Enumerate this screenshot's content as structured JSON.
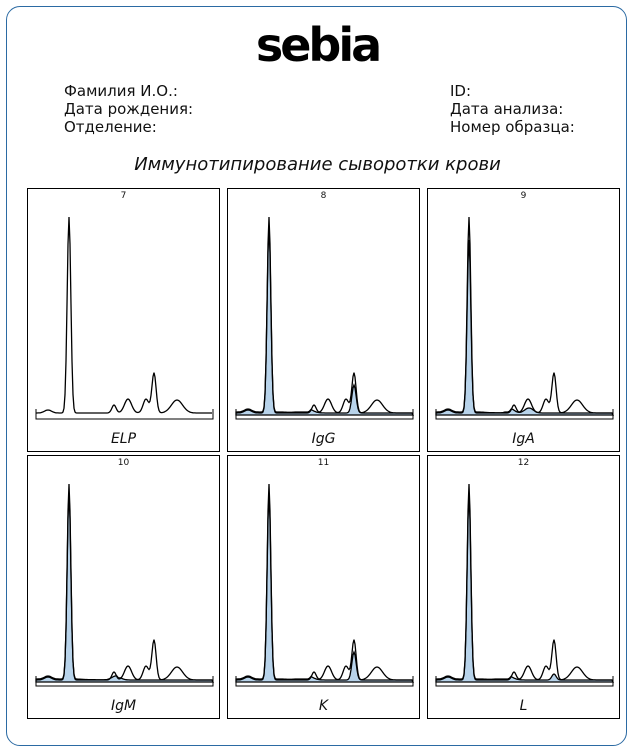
{
  "logo": "sebia",
  "patient": {
    "name_label": "Фамилия И.О.:",
    "birth_label": "Дата рождения:",
    "dept_label": "Отделение:",
    "id_label": "ID:",
    "analysis_date_label": "Дата анализа:",
    "sample_label": "Номер образца:"
  },
  "title": "Иммунотипирование сыворотки крови",
  "colors": {
    "frame": "#2b6aa3",
    "fill": "#b8d3ea"
  },
  "panels": [
    {
      "number": "7",
      "label": "ELP",
      "type": "elp"
    },
    {
      "number": "8",
      "label": "IgG",
      "type": "heavy"
    },
    {
      "number": "9",
      "label": "IgA",
      "type": "igA"
    },
    {
      "number": "10",
      "label": "IgM",
      "type": "igM"
    },
    {
      "number": "11",
      "label": "K",
      "type": "heavy"
    },
    {
      "number": "12",
      "label": "L",
      "type": "light"
    }
  ]
}
